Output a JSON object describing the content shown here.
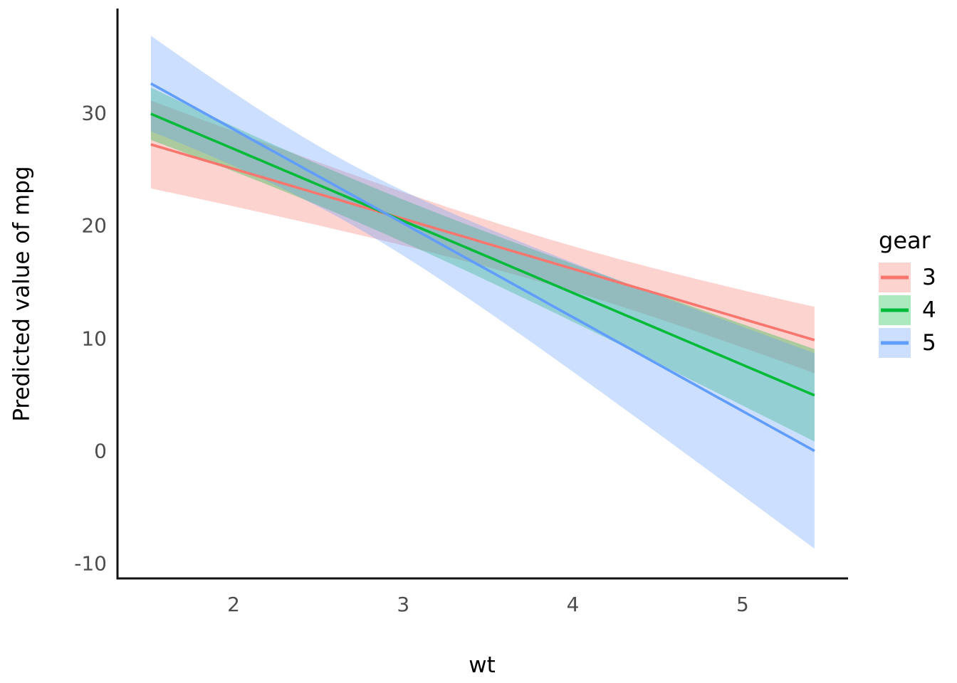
{
  "figure": {
    "background": "#ffffff",
    "axis_line_color": "#111111",
    "tick_label_color": "#4d4d4d"
  },
  "axes": {
    "x": {
      "title": "wt",
      "ticks": [
        {
          "label": "2",
          "value": 2
        },
        {
          "label": "3",
          "value": 3
        },
        {
          "label": "4",
          "value": 4
        },
        {
          "label": "5",
          "value": 5
        }
      ]
    },
    "y": {
      "title": "Predicted value of mpg",
      "ticks": [
        {
          "label": "30",
          "value": 30
        },
        {
          "label": "20",
          "value": 20
        },
        {
          "label": "10",
          "value": 10
        },
        {
          "label": "0",
          "value": 0
        },
        {
          "label": "-10",
          "value": -10
        }
      ]
    }
  },
  "legend": {
    "title": "gear",
    "entries": [
      {
        "label": "3",
        "line_color": "#F8766D",
        "fill_color": "rgba(248,118,109,0.32)"
      },
      {
        "label": "4",
        "line_color": "#00BA38",
        "fill_color": "rgba(0,186,56,0.32)"
      },
      {
        "label": "5",
        "line_color": "#619CFF",
        "fill_color": "rgba(97,156,255,0.32)"
      }
    ]
  },
  "chart_data": {
    "type": "line",
    "title": "",
    "xlabel": "wt",
    "ylabel": "Predicted value of mpg",
    "legend_title": "gear",
    "legend_position": "right",
    "grid": false,
    "xlim": [
      1.45,
      5.62
    ],
    "ylim": [
      -11.3,
      39.4
    ],
    "x_data_range": [
      1.513,
      5.424
    ],
    "series": [
      {
        "name": "3",
        "color": "#F8766D",
        "fill": "rgba(248,118,109,0.32)",
        "x": [
          1.51,
          5.42
        ],
        "predicted": [
          27.3,
          9.9
        ],
        "conf_low": [
          23.4,
          6.9
        ],
        "conf_high": [
          31.2,
          12.9
        ],
        "intercept": 34.0,
        "slope": -4.44,
        "ci": {
          "waist_x": 3.89,
          "waist_halfwidth": 2.01,
          "k": 1.98
        }
      },
      {
        "name": "4",
        "color": "#00BA38",
        "fill": "rgba(0,186,56,0.32)",
        "x": [
          1.51,
          5.42
        ],
        "predicted": [
          30.0,
          5.0
        ],
        "conf_low": [
          27.7,
          0.9
        ],
        "conf_high": [
          32.3,
          9.1
        ],
        "intercept": 39.67,
        "slope": -6.39,
        "ci": {
          "waist_x": 2.62,
          "waist_halfwidth": 1.82,
          "k": 1.72
        }
      },
      {
        "name": "5",
        "color": "#619CFF",
        "fill": "rgba(97,156,255,0.32)",
        "x": [
          1.51,
          5.42
        ],
        "predicted": [
          32.7,
          0.1
        ],
        "conf_low": [
          28.4,
          -8.6
        ],
        "conf_high": [
          36.9,
          8.8
        ],
        "intercept": 45.31,
        "slope": -8.34,
        "ci": {
          "waist_x": 2.63,
          "waist_halfwidth": 2.66,
          "k": 8.74
        }
      }
    ]
  }
}
